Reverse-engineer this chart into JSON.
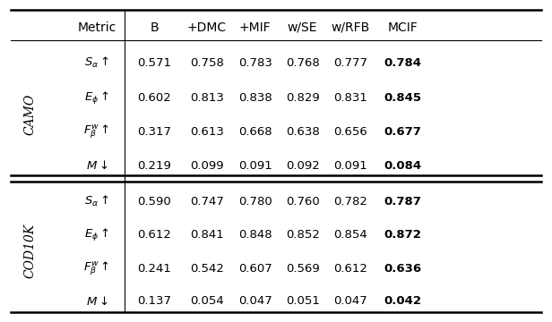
{
  "columns": [
    "Metric",
    "B",
    "+DMC",
    "+MIF",
    "w/SE",
    "w/RFB",
    "MCIF"
  ],
  "camo_rows": [
    {
      "metric": "$S_{\\alpha}\\uparrow$",
      "values": [
        "0.571",
        "0.758",
        "0.783",
        "0.768",
        "0.777",
        "0.784"
      ],
      "bold_last": true
    },
    {
      "metric": "$E_{\\phi}\\uparrow$",
      "values": [
        "0.602",
        "0.813",
        "0.838",
        "0.829",
        "0.831",
        "0.845"
      ],
      "bold_last": true
    },
    {
      "metric": "$F_{\\beta}^{w}\\uparrow$",
      "values": [
        "0.317",
        "0.613",
        "0.668",
        "0.638",
        "0.656",
        "0.677"
      ],
      "bold_last": true
    },
    {
      "metric": "$M\\downarrow$",
      "values": [
        "0.219",
        "0.099",
        "0.091",
        "0.092",
        "0.091",
        "0.084"
      ],
      "bold_last": true
    }
  ],
  "cod10k_rows": [
    {
      "metric": "$S_{\\alpha}\\uparrow$",
      "values": [
        "0.590",
        "0.747",
        "0.780",
        "0.760",
        "0.782",
        "0.787"
      ],
      "bold_last": true
    },
    {
      "metric": "$E_{\\phi}\\uparrow$",
      "values": [
        "0.612",
        "0.841",
        "0.848",
        "0.852",
        "0.854",
        "0.872"
      ],
      "bold_last": true
    },
    {
      "metric": "$F_{\\beta}^{w}\\uparrow$",
      "values": [
        "0.241",
        "0.542",
        "0.607",
        "0.569",
        "0.612",
        "0.636"
      ],
      "bold_last": true
    },
    {
      "metric": "$M\\downarrow$",
      "values": [
        "0.137",
        "0.054",
        "0.047",
        "0.051",
        "0.047",
        "0.042"
      ],
      "bold_last": true
    }
  ],
  "dataset_labels": [
    "CAMO",
    "COD10K"
  ],
  "col_headers": [
    "Metric",
    "B",
    "+DMC",
    "+MIF",
    "w/SE",
    "w/RFB",
    "MCIF"
  ],
  "background_color": "#ffffff",
  "text_color": "#000000",
  "line_color": "#000000"
}
